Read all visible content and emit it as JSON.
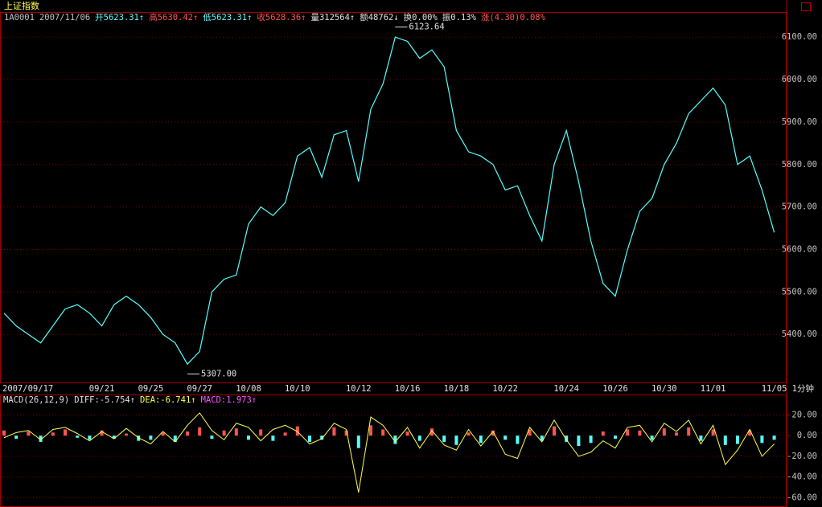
{
  "title": "上证指数",
  "quote": [
    {
      "text": "1A0001",
      "color": "#c0c0c0"
    },
    {
      "text": "2007/11/06",
      "color": "#c0c0c0"
    },
    {
      "text": "开5623.31↑",
      "color": "#54ffff"
    },
    {
      "text": "高5630.42↑",
      "color": "#ff5454"
    },
    {
      "text": "低5623.31↑",
      "color": "#54ffff"
    },
    {
      "text": "收5628.36↑",
      "color": "#ff5454"
    },
    {
      "text": "量312564↑",
      "color": "#e0e0e0"
    },
    {
      "text": "额48762↓",
      "color": "#e0e0e0"
    },
    {
      "text": "换0.00%",
      "color": "#e0e0e0"
    },
    {
      "text": "振0.13%",
      "color": "#e0e0e0"
    },
    {
      "text": "涨(4.30)0.08%",
      "color": "#ff5454"
    }
  ],
  "period": "1分钟",
  "chart_data": [
    {
      "type": "line",
      "color": "#54ffff",
      "grid": true,
      "categories": [
        "2007/09/17",
        null,
        null,
        null,
        null,
        null,
        null,
        null,
        "09/21",
        null,
        null,
        null,
        "09/25",
        null,
        null,
        null,
        "09/27",
        null,
        null,
        null,
        "10/08",
        null,
        null,
        null,
        "10/10",
        null,
        null,
        null,
        null,
        "10/12",
        null,
        null,
        null,
        "10/16",
        null,
        null,
        null,
        "10/18",
        null,
        null,
        null,
        "10/22",
        null,
        null,
        null,
        null,
        "10/24",
        null,
        null,
        null,
        "10/26",
        null,
        null,
        null,
        "10/30",
        null,
        null,
        null,
        "11/01",
        null,
        null,
        null,
        null,
        "11/05"
      ],
      "values": [
        5450,
        5420,
        5400,
        5380,
        5420,
        5460,
        5470,
        5450,
        5420,
        5470,
        5490,
        5470,
        5440,
        5400,
        5380,
        5330,
        5360,
        5500,
        5530,
        5540,
        5660,
        5700,
        5680,
        5710,
        5820,
        5840,
        5770,
        5870,
        5880,
        5760,
        5930,
        5990,
        6100,
        6090,
        6050,
        6070,
        6030,
        5880,
        5830,
        5820,
        5800,
        5740,
        5750,
        5680,
        5620,
        5800,
        5880,
        5760,
        5620,
        5520,
        5490,
        5600,
        5690,
        5720,
        5800,
        5850,
        5920,
        5950,
        5980,
        5940,
        5800,
        5820,
        5740,
        5640
      ],
      "max": {
        "value": 6123.64,
        "label": "6123.64"
      },
      "min": {
        "value": 5307.0,
        "label": "5307.00"
      },
      "ylim": [
        5285,
        6159
      ],
      "yticks": [
        {
          "value": 5400,
          "label": "5400.00"
        },
        {
          "value": 5500,
          "label": "5500.00"
        },
        {
          "value": 5600,
          "label": "5600.00"
        },
        {
          "value": 5700,
          "label": "5700.00"
        },
        {
          "value": 5800,
          "label": "5800.00"
        },
        {
          "value": 5900,
          "label": "5900.00"
        },
        {
          "value": 6000,
          "label": "6000.00"
        },
        {
          "value": 6100,
          "label": "6100.00"
        }
      ]
    },
    {
      "type": "bar",
      "up_color": "#ff5454",
      "down_color": "#54ffff",
      "grid": true,
      "legend": [
        {
          "text": "MACD(26,12,9)",
          "color": "#e0e0e0"
        },
        {
          "text": "DIFF:-5.754↑",
          "color": "#e0e0e0"
        },
        {
          "text": "DEA:-6.741↑",
          "color": "#ffff54"
        },
        {
          "text": "MACD:1.973↑",
          "color": "#ff54ff"
        }
      ],
      "values": [
        5,
        -3,
        4,
        -6,
        3,
        6,
        -2,
        -4,
        5,
        -3,
        2,
        -5,
        -4,
        3,
        -6,
        4,
        8,
        -3,
        5,
        7,
        -4,
        6,
        -5,
        3,
        9,
        -6,
        -4,
        8,
        5,
        -12,
        10,
        6,
        -8,
        4,
        -5,
        7,
        -6,
        -9,
        3,
        -7,
        5,
        -4,
        -8,
        6,
        -5,
        9,
        -6,
        -10,
        -7,
        4,
        -3,
        6,
        5,
        -4,
        7,
        3,
        8,
        -5,
        6,
        -9,
        -8,
        5,
        -7,
        -4
      ],
      "line": {
        "color": "#ffff54",
        "values": [
          -2,
          3,
          5,
          -4,
          6,
          8,
          2,
          -5,
          4,
          -3,
          7,
          -2,
          -8,
          4,
          -6,
          10,
          22,
          5,
          -4,
          12,
          8,
          -5,
          6,
          10,
          4,
          -8,
          -3,
          12,
          6,
          -55,
          18,
          10,
          -6,
          8,
          -12,
          5,
          -9,
          -14,
          6,
          -10,
          4,
          -18,
          -22,
          8,
          -6,
          15,
          -4,
          -20,
          -16,
          -5,
          -12,
          8,
          10,
          -6,
          12,
          4,
          15,
          -8,
          10,
          -28,
          -14,
          6,
          -20,
          -8
        ]
      },
      "ylim": [
        -69,
        39
      ],
      "yticks": [
        {
          "value": 20,
          "label": "20.00"
        },
        {
          "value": 0,
          "label": "0.00"
        },
        {
          "value": -20,
          "label": "-20.00"
        },
        {
          "value": -40,
          "label": "-40.00"
        },
        {
          "value": -60,
          "label": "-60.00"
        }
      ]
    }
  ]
}
